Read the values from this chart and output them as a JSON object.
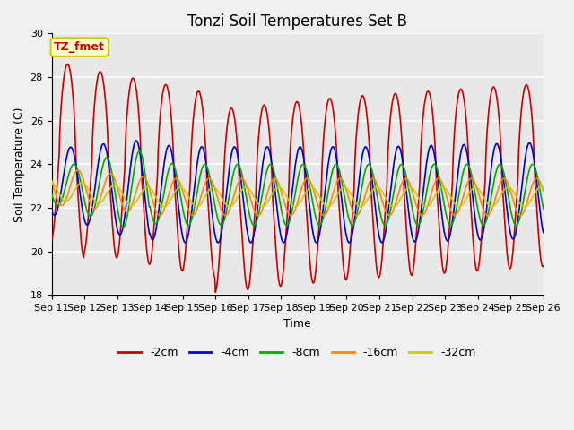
{
  "title": "Tonzi Soil Temperatures Set B",
  "xlabel": "Time",
  "ylabel": "Soil Temperature (C)",
  "ylim": [
    18,
    30
  ],
  "yticks": [
    18,
    20,
    22,
    24,
    26,
    28,
    30
  ],
  "n_days": 15,
  "x_tick_labels": [
    "Sep 11",
    "Sep 12",
    "Sep 13",
    "Sep 14",
    "Sep 15",
    "Sep 16",
    "Sep 17",
    "Sep 18",
    "Sep 19",
    "Sep 20",
    "Sep 21",
    "Sep 22",
    "Sep 23",
    "Sep 24",
    "Sep 25",
    "Sep 26"
  ],
  "annotation_text": "TZ_fmet",
  "annotation_bg": "#ffffcc",
  "annotation_border": "#cccc00",
  "line_colors": {
    "-2cm": "#cc0000",
    "-4cm": "#0000cc",
    "-8cm": "#00aa00",
    "-16cm": "#ff8800",
    "-32cm": "#cccc00"
  },
  "legend_labels": [
    "-2cm",
    "-4cm",
    "-8cm",
    "-16cm",
    "-32cm"
  ],
  "bg_color": "#e8e8e8",
  "grid_color": "#ffffff",
  "title_fontsize": 12,
  "axis_label_fontsize": 9,
  "tick_fontsize": 8
}
